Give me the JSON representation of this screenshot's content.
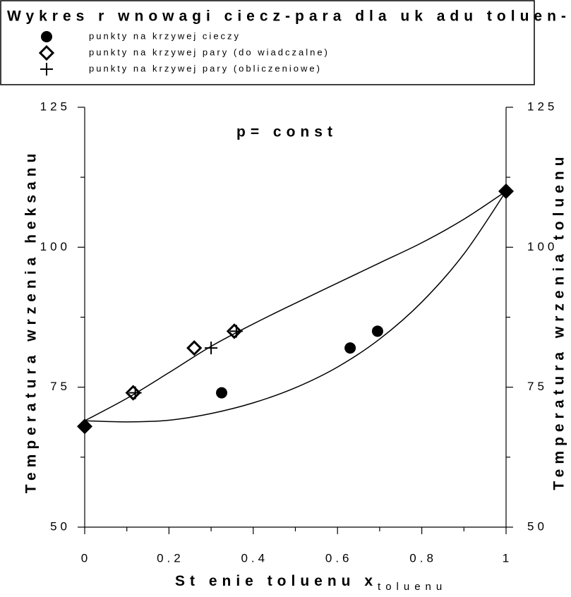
{
  "chart_data": {
    "type": "scatter",
    "title": "Wykres r wnowagi ciecz-para dla uk adu toluen- heksan",
    "annotation": "p= const",
    "xlabel": "St enie toluenu x",
    "xlabel_sub": "toluenu",
    "ylabel": "Temperatura wrzenia heksanu",
    "y2label": "Temperatura wrzenia toluenu",
    "xlim": [
      0,
      1
    ],
    "ylim": [
      50,
      125
    ],
    "y2lim": [
      50,
      125
    ],
    "xticks": [
      0,
      0.2,
      0.4,
      0.6,
      0.8,
      1
    ],
    "xminor": [
      0.1,
      0.3,
      0.5,
      0.7,
      0.9
    ],
    "yticks": [
      50,
      75,
      100,
      125
    ],
    "yminor": [
      62.5,
      87.5,
      112.5
    ],
    "series": [
      {
        "name": "punkty na krzywej cieczy",
        "marker": "circle",
        "color": "#000000",
        "x": [
          0.325,
          0.63,
          0.695
        ],
        "values": [
          74,
          82,
          85
        ]
      },
      {
        "name": "punkty na krzywej pary (do wiadczalne)",
        "marker": "diamond-open",
        "color": "#000000",
        "x": [
          0.115,
          0.26,
          0.355
        ],
        "values": [
          74,
          82,
          85
        ]
      },
      {
        "name": "punkty na krzywej pary (obliczeniowe)",
        "marker": "plus",
        "color": "#000000",
        "x": [
          0.12,
          0.3,
          0.36
        ],
        "values": [
          74,
          82,
          85
        ]
      }
    ],
    "endpoints": {
      "marker": "diamond-filled",
      "x": [
        0,
        1
      ],
      "values": [
        68,
        110
      ]
    },
    "curves": [
      {
        "x": [
          0,
          0.1,
          0.2,
          0.3,
          0.4,
          0.5,
          0.6,
          0.7,
          0.8,
          0.9,
          1
        ],
        "values": [
          69,
          68.8,
          69.1,
          70.3,
          72.2,
          74.9,
          78.6,
          83.6,
          90.2,
          98.8,
          110
        ]
      },
      {
        "x": [
          0,
          0.1,
          0.2,
          0.3,
          0.4,
          0.5,
          0.6,
          0.7,
          0.8,
          0.9,
          1
        ],
        "values": [
          69,
          73,
          77.6,
          82.3,
          86.3,
          90,
          93.6,
          97.2,
          100.8,
          105,
          110
        ]
      }
    ]
  }
}
